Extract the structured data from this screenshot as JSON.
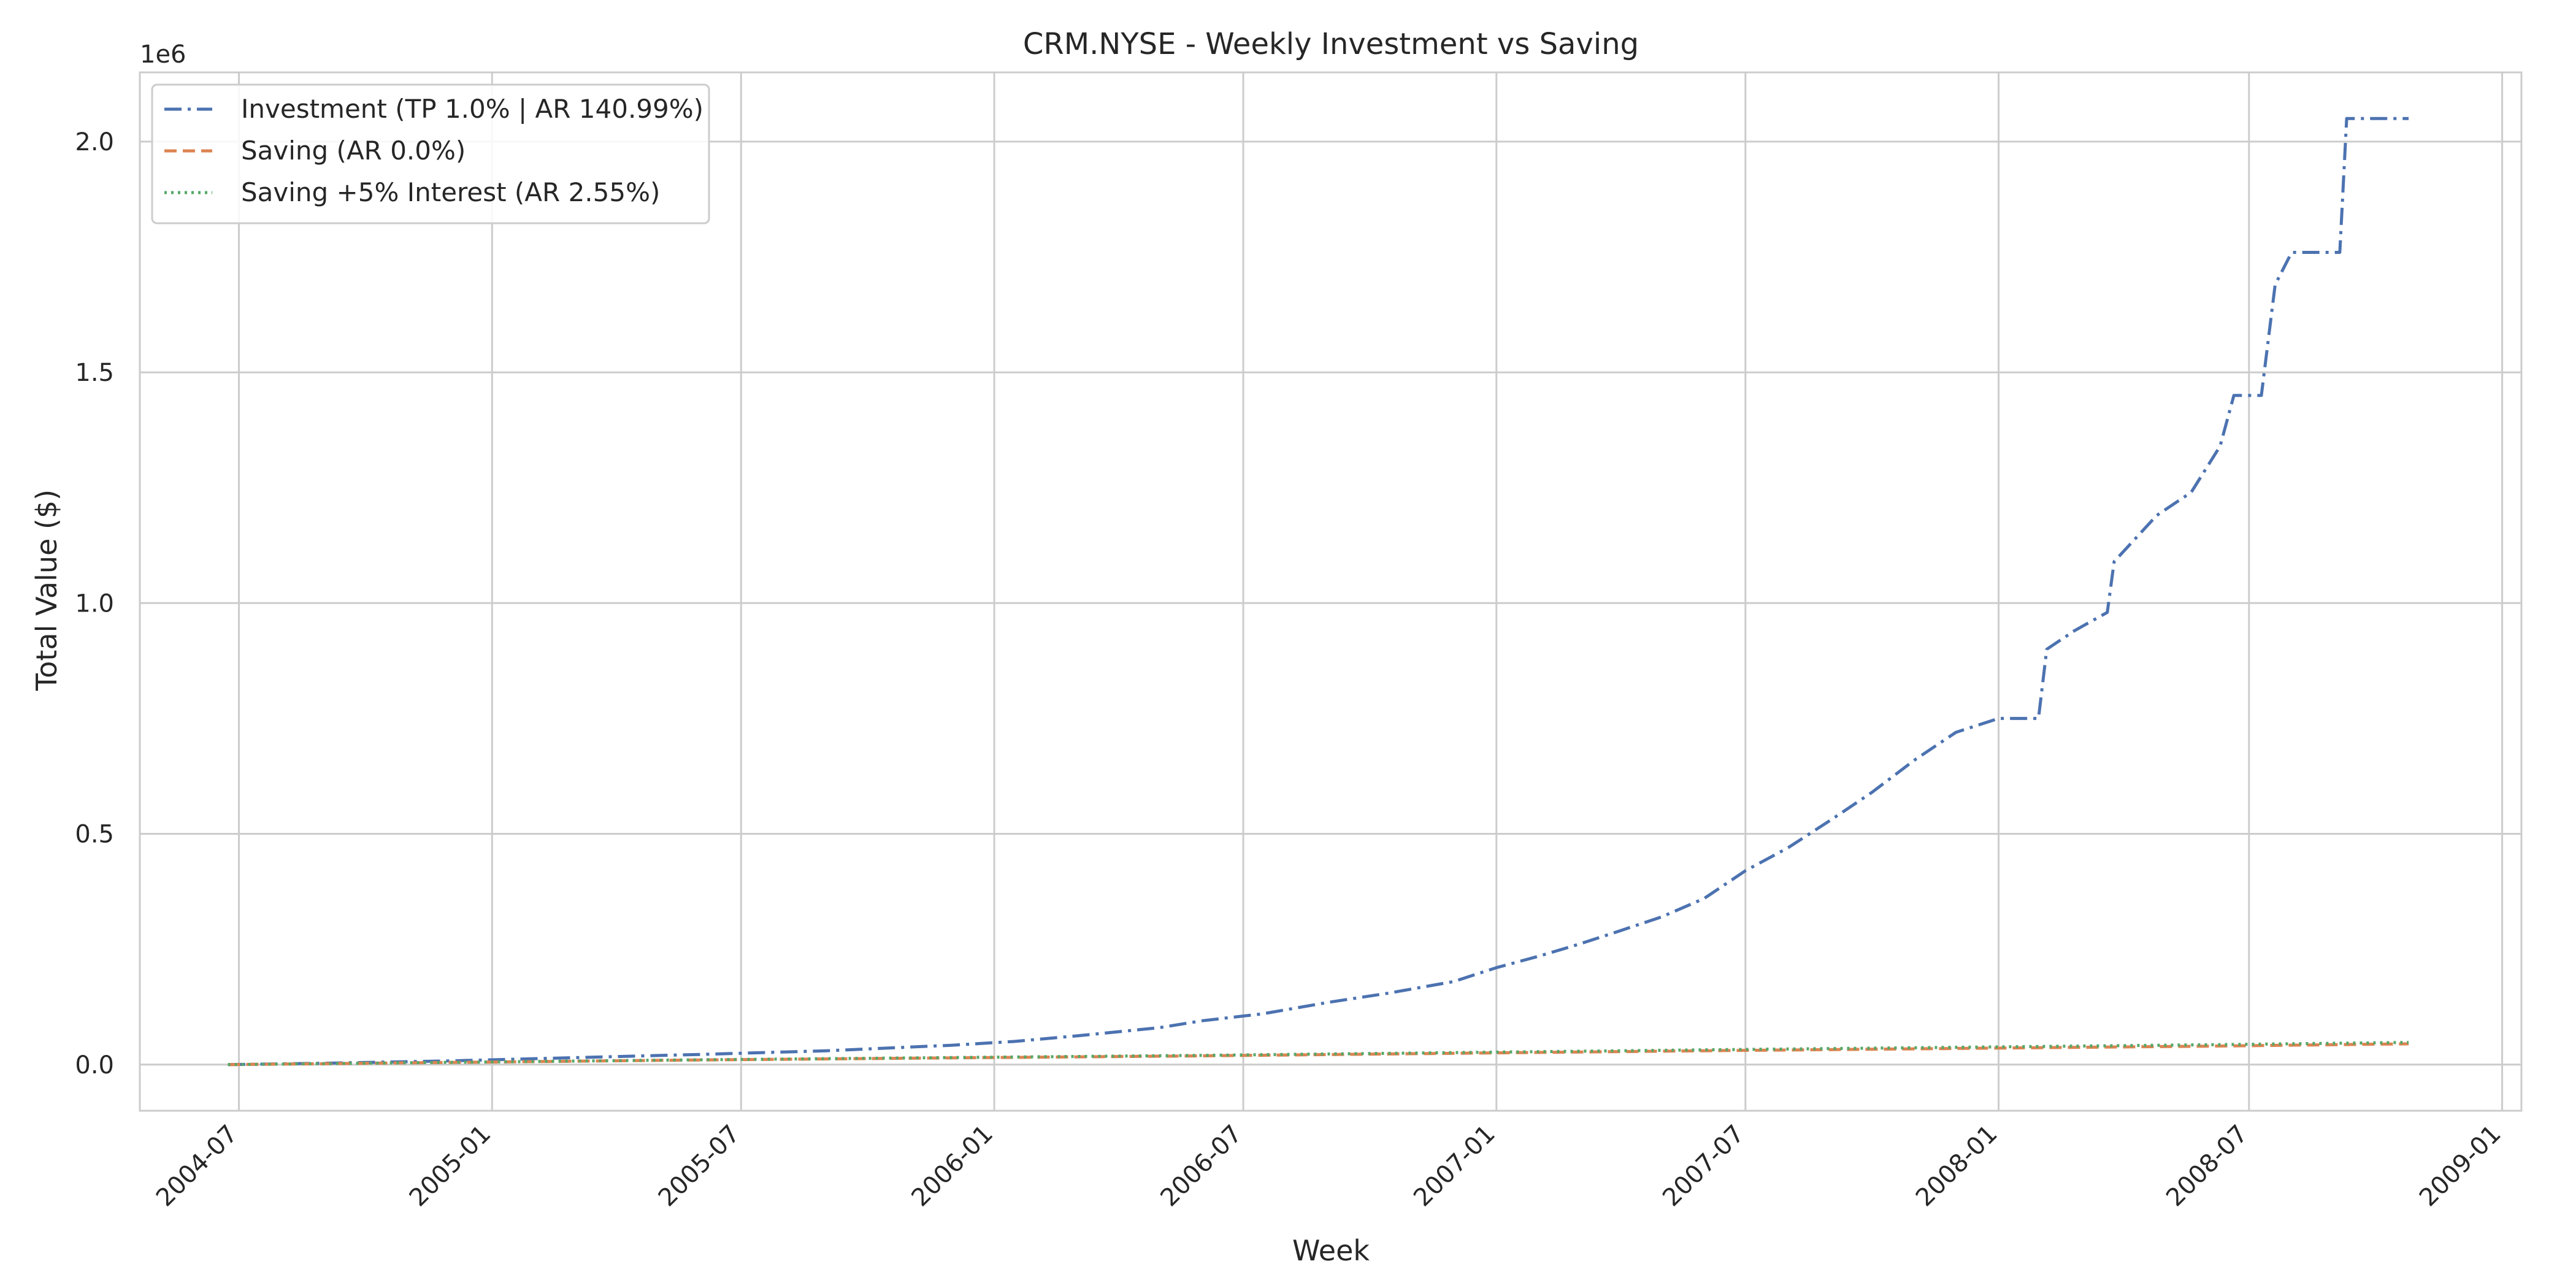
{
  "chart_data": {
    "type": "line",
    "title": "CRM.NYSE - Weekly Investment vs Saving",
    "xlabel": "Week",
    "ylabel": "Total Value ($)",
    "y_offset_label": "1e6",
    "ylim": [
      -100000,
      2150000
    ],
    "xlim": [
      "2004-04-20",
      "2009-01-15"
    ],
    "x_ticks": [
      "2004-07",
      "2005-01",
      "2005-07",
      "2006-01",
      "2006-07",
      "2007-01",
      "2007-07",
      "2008-01",
      "2008-07",
      "2009-01"
    ],
    "y_ticks": [
      0.0,
      0.5,
      1.0,
      1.5,
      2.0
    ],
    "grid": true,
    "legend_position": "top-left",
    "series": [
      {
        "name": "Investment (TP 1.0% | AR 140.99%)",
        "color": "#4c72b0",
        "linestyle": "dashdot",
        "x": [
          "2004-06-23",
          "2004-09-01",
          "2004-12-01",
          "2005-03-01",
          "2005-06-01",
          "2005-09-01",
          "2005-12-01",
          "2006-01-15",
          "2006-03-01",
          "2006-05-01",
          "2006-06-01",
          "2006-07-15",
          "2006-09-01",
          "2006-10-15",
          "2006-12-01",
          "2007-01-01",
          "2007-02-01",
          "2007-03-01",
          "2007-04-01",
          "2007-05-01",
          "2007-06-01",
          "2007-07-01",
          "2007-08-01",
          "2007-09-01",
          "2007-10-01",
          "2007-11-01",
          "2007-12-01",
          "2008-01-01",
          "2008-01-30",
          "2008-02-05",
          "2008-02-25",
          "2008-03-20",
          "2008-03-25",
          "2008-04-25",
          "2008-05-20",
          "2008-06-10",
          "2008-06-20",
          "2008-07-10",
          "2008-07-20",
          "2008-08-01",
          "2008-09-05",
          "2008-09-10",
          "2008-10-25"
        ],
        "y": [
          0,
          3000,
          8000,
          15000,
          22000,
          30000,
          42000,
          50000,
          62000,
          80000,
          95000,
          110000,
          135000,
          155000,
          180000,
          210000,
          235000,
          260000,
          290000,
          320000,
          360000,
          420000,
          470000,
          530000,
          590000,
          660000,
          720000,
          750000,
          750000,
          900000,
          940000,
          980000,
          1090000,
          1190000,
          1240000,
          1340000,
          1450000,
          1450000,
          1690000,
          1760000,
          1760000,
          2050000,
          2050000
        ]
      },
      {
        "name": "Saving (AR 0.0%)",
        "color": "#dd8452",
        "linestyle": "dashed",
        "x": [
          "2004-06-23",
          "2005-06-01",
          "2006-06-01",
          "2007-06-01",
          "2008-06-01",
          "2008-10-25"
        ],
        "y": [
          0,
          10000,
          19000,
          30000,
          40000,
          45000
        ]
      },
      {
        "name": "Saving +5% Interest (AR 2.55%)",
        "color": "#55a868",
        "linestyle": "dotted",
        "x": [
          "2004-06-23",
          "2005-06-01",
          "2006-06-01",
          "2007-06-01",
          "2008-06-01",
          "2008-10-25"
        ],
        "y": [
          0,
          10500,
          20000,
          32000,
          43000,
          48000
        ]
      }
    ]
  }
}
